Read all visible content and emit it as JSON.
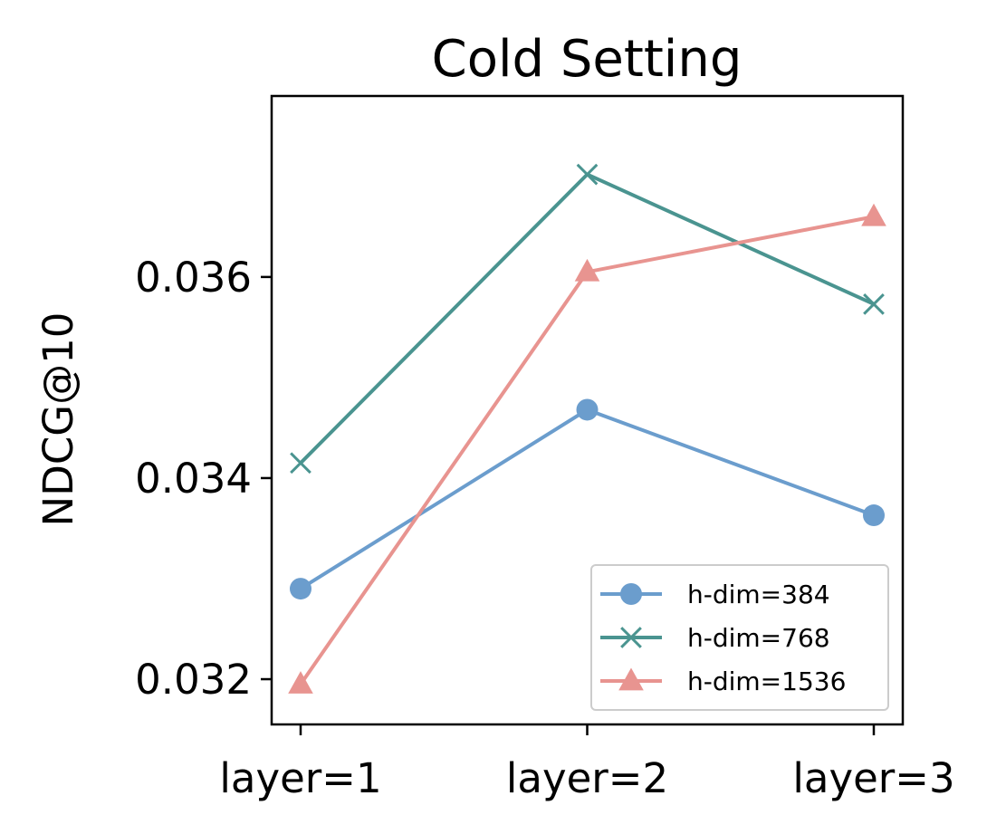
{
  "chart_data": {
    "type": "line",
    "title": "Cold Setting",
    "xlabel": "",
    "ylabel": "NDCG@10",
    "categories": [
      "layer=1",
      "layer=2",
      "layer=3"
    ],
    "ylim": [
      0.03155,
      0.0378
    ],
    "yticks": [
      0.032,
      0.034,
      0.036
    ],
    "ytick_labels": [
      "0.032",
      "0.034",
      "0.036"
    ],
    "grid": false,
    "legend_position": "lower-right",
    "series": [
      {
        "name": "h-dim=384",
        "values": [
          0.0329,
          0.03468,
          0.03363
        ],
        "color": "#6b9dcd",
        "marker": "circle"
      },
      {
        "name": "h-dim=768",
        "values": [
          0.03415,
          0.03702,
          0.03573
        ],
        "color": "#4a9490",
        "marker": "x"
      },
      {
        "name": "h-dim=1536",
        "values": [
          0.03195,
          0.03605,
          0.0366
        ],
        "color": "#e89490",
        "marker": "triangle"
      }
    ]
  }
}
